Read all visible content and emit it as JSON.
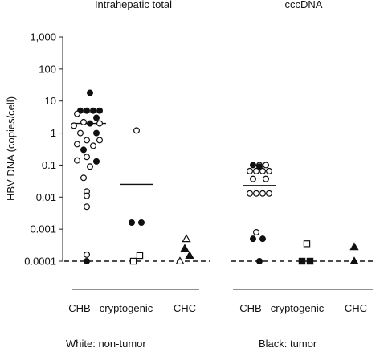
{
  "chart_data": {
    "type": "scatter",
    "panels": [
      {
        "title": "Intrahepatic total"
      },
      {
        "title": "cccDNA"
      }
    ],
    "ylabel": "HBV DNA (copies/cell)",
    "yscale": "log",
    "ylim": [
      0.0001,
      1000
    ],
    "yticks": [
      {
        "value": 1000,
        "label": "1,000"
      },
      {
        "value": 100,
        "label": "100"
      },
      {
        "value": 10,
        "label": "10"
      },
      {
        "value": 1,
        "label": "1"
      },
      {
        "value": 0.1,
        "label": "0.1"
      },
      {
        "value": 0.01,
        "label": "0.01"
      },
      {
        "value": 0.001,
        "label": "0.001"
      },
      {
        "value": 0.0001,
        "label": "0.0001"
      }
    ],
    "categories": [
      "CHB",
      "cryptogenic",
      "CHC"
    ],
    "detection_limit": 0.0001,
    "legend": [
      "White: non-tumor",
      "Black: tumor"
    ],
    "groups": [
      {
        "panel": 0,
        "category": "CHB",
        "marker": "circle",
        "median": 2,
        "points": [
          {
            "y": 18,
            "filled": true,
            "dx": 0
          },
          {
            "y": 5,
            "filled": true,
            "dx": -12
          },
          {
            "y": 5,
            "filled": true,
            "dx": -4
          },
          {
            "y": 5,
            "filled": true,
            "dx": 4
          },
          {
            "y": 5,
            "filled": true,
            "dx": 12
          },
          {
            "y": 4,
            "filled": false,
            "dx": -16
          },
          {
            "y": 3,
            "filled": true,
            "dx": 8
          },
          {
            "y": 2.2,
            "filled": false,
            "dx": -8
          },
          {
            "y": 2,
            "filled": true,
            "dx": 0
          },
          {
            "y": 2,
            "filled": false,
            "dx": 12
          },
          {
            "y": 1.7,
            "filled": false,
            "dx": -20
          },
          {
            "y": 1,
            "filled": false,
            "dx": -12
          },
          {
            "y": 1,
            "filled": true,
            "dx": 8
          },
          {
            "y": 0.6,
            "filled": false,
            "dx": -4
          },
          {
            "y": 0.6,
            "filled": false,
            "dx": 12
          },
          {
            "y": 0.45,
            "filled": false,
            "dx": -16
          },
          {
            "y": 0.4,
            "filled": false,
            "dx": 4
          },
          {
            "y": 0.3,
            "filled": true,
            "dx": -8
          },
          {
            "y": 0.18,
            "filled": false,
            "dx": -4
          },
          {
            "y": 0.14,
            "filled": false,
            "dx": -16
          },
          {
            "y": 0.13,
            "filled": true,
            "dx": 8
          },
          {
            "y": 0.09,
            "filled": false,
            "dx": 0
          },
          {
            "y": 0.04,
            "filled": false,
            "dx": -8
          },
          {
            "y": 0.015,
            "filled": false,
            "dx": -4
          },
          {
            "y": 0.011,
            "filled": false,
            "dx": -4
          },
          {
            "y": 0.005,
            "filled": false,
            "dx": -4
          },
          {
            "y": 0.00016,
            "filled": false,
            "dx": -4
          },
          {
            "y": 0.0001,
            "filled": true,
            "dx": -4
          }
        ]
      },
      {
        "panel": 0,
        "category": "cryptogenic",
        "marker": "mixed",
        "median": 0.025,
        "points": [
          {
            "y": 1.2,
            "filled": false,
            "shape": "circle",
            "dx": 0
          },
          {
            "y": 0.0016,
            "filled": true,
            "shape": "circle",
            "dx": -6
          },
          {
            "y": 0.0016,
            "filled": true,
            "shape": "circle",
            "dx": 6
          },
          {
            "y": 0.00015,
            "filled": false,
            "shape": "square",
            "dx": 4
          },
          {
            "y": 0.0001,
            "filled": false,
            "shape": "square",
            "dx": -4
          }
        ]
      },
      {
        "panel": 0,
        "category": "CHC",
        "marker": "triangle",
        "median": null,
        "points": [
          {
            "y": 0.0005,
            "filled": false,
            "dx": 2
          },
          {
            "y": 0.00025,
            "filled": true,
            "dx": 0
          },
          {
            "y": 0.00015,
            "filled": true,
            "dx": 6
          },
          {
            "y": 0.0001,
            "filled": false,
            "dx": -6
          }
        ]
      },
      {
        "panel": 1,
        "category": "CHB",
        "marker": "circle",
        "median": 0.023,
        "points": [
          {
            "y": 0.1,
            "filled": true,
            "dx": -8
          },
          {
            "y": 0.1,
            "filled": false,
            "dx": 0
          },
          {
            "y": 0.1,
            "filled": false,
            "dx": 8
          },
          {
            "y": 0.09,
            "filled": true,
            "dx": 0
          },
          {
            "y": 0.065,
            "filled": false,
            "dx": -12
          },
          {
            "y": 0.065,
            "filled": false,
            "dx": -4
          },
          {
            "y": 0.065,
            "filled": false,
            "dx": 4
          },
          {
            "y": 0.065,
            "filled": false,
            "dx": 12
          },
          {
            "y": 0.037,
            "filled": false,
            "dx": -8
          },
          {
            "y": 0.037,
            "filled": false,
            "dx": 8
          },
          {
            "y": 0.013,
            "filled": false,
            "dx": -12
          },
          {
            "y": 0.013,
            "filled": false,
            "dx": -4
          },
          {
            "y": 0.013,
            "filled": false,
            "dx": 4
          },
          {
            "y": 0.013,
            "filled": false,
            "dx": 12
          },
          {
            "y": 0.0008,
            "filled": false,
            "dx": -4
          },
          {
            "y": 0.0005,
            "filled": true,
            "dx": -8
          },
          {
            "y": 0.0005,
            "filled": true,
            "dx": 4
          },
          {
            "y": 0.0001,
            "filled": true,
            "dx": 0
          }
        ]
      },
      {
        "panel": 1,
        "category": "cryptogenic",
        "marker": "square",
        "median": null,
        "points": [
          {
            "y": 0.00035,
            "filled": false,
            "dx": 0
          },
          {
            "y": 0.0001,
            "filled": true,
            "dx": -6
          },
          {
            "y": 0.0001,
            "filled": true,
            "dx": 4
          }
        ]
      },
      {
        "panel": 1,
        "category": "CHC",
        "marker": "triangle",
        "median": null,
        "points": [
          {
            "y": 0.00028,
            "filled": true,
            "dx": 0
          },
          {
            "y": 0.0001,
            "filled": true,
            "dx": 0
          }
        ]
      }
    ]
  }
}
